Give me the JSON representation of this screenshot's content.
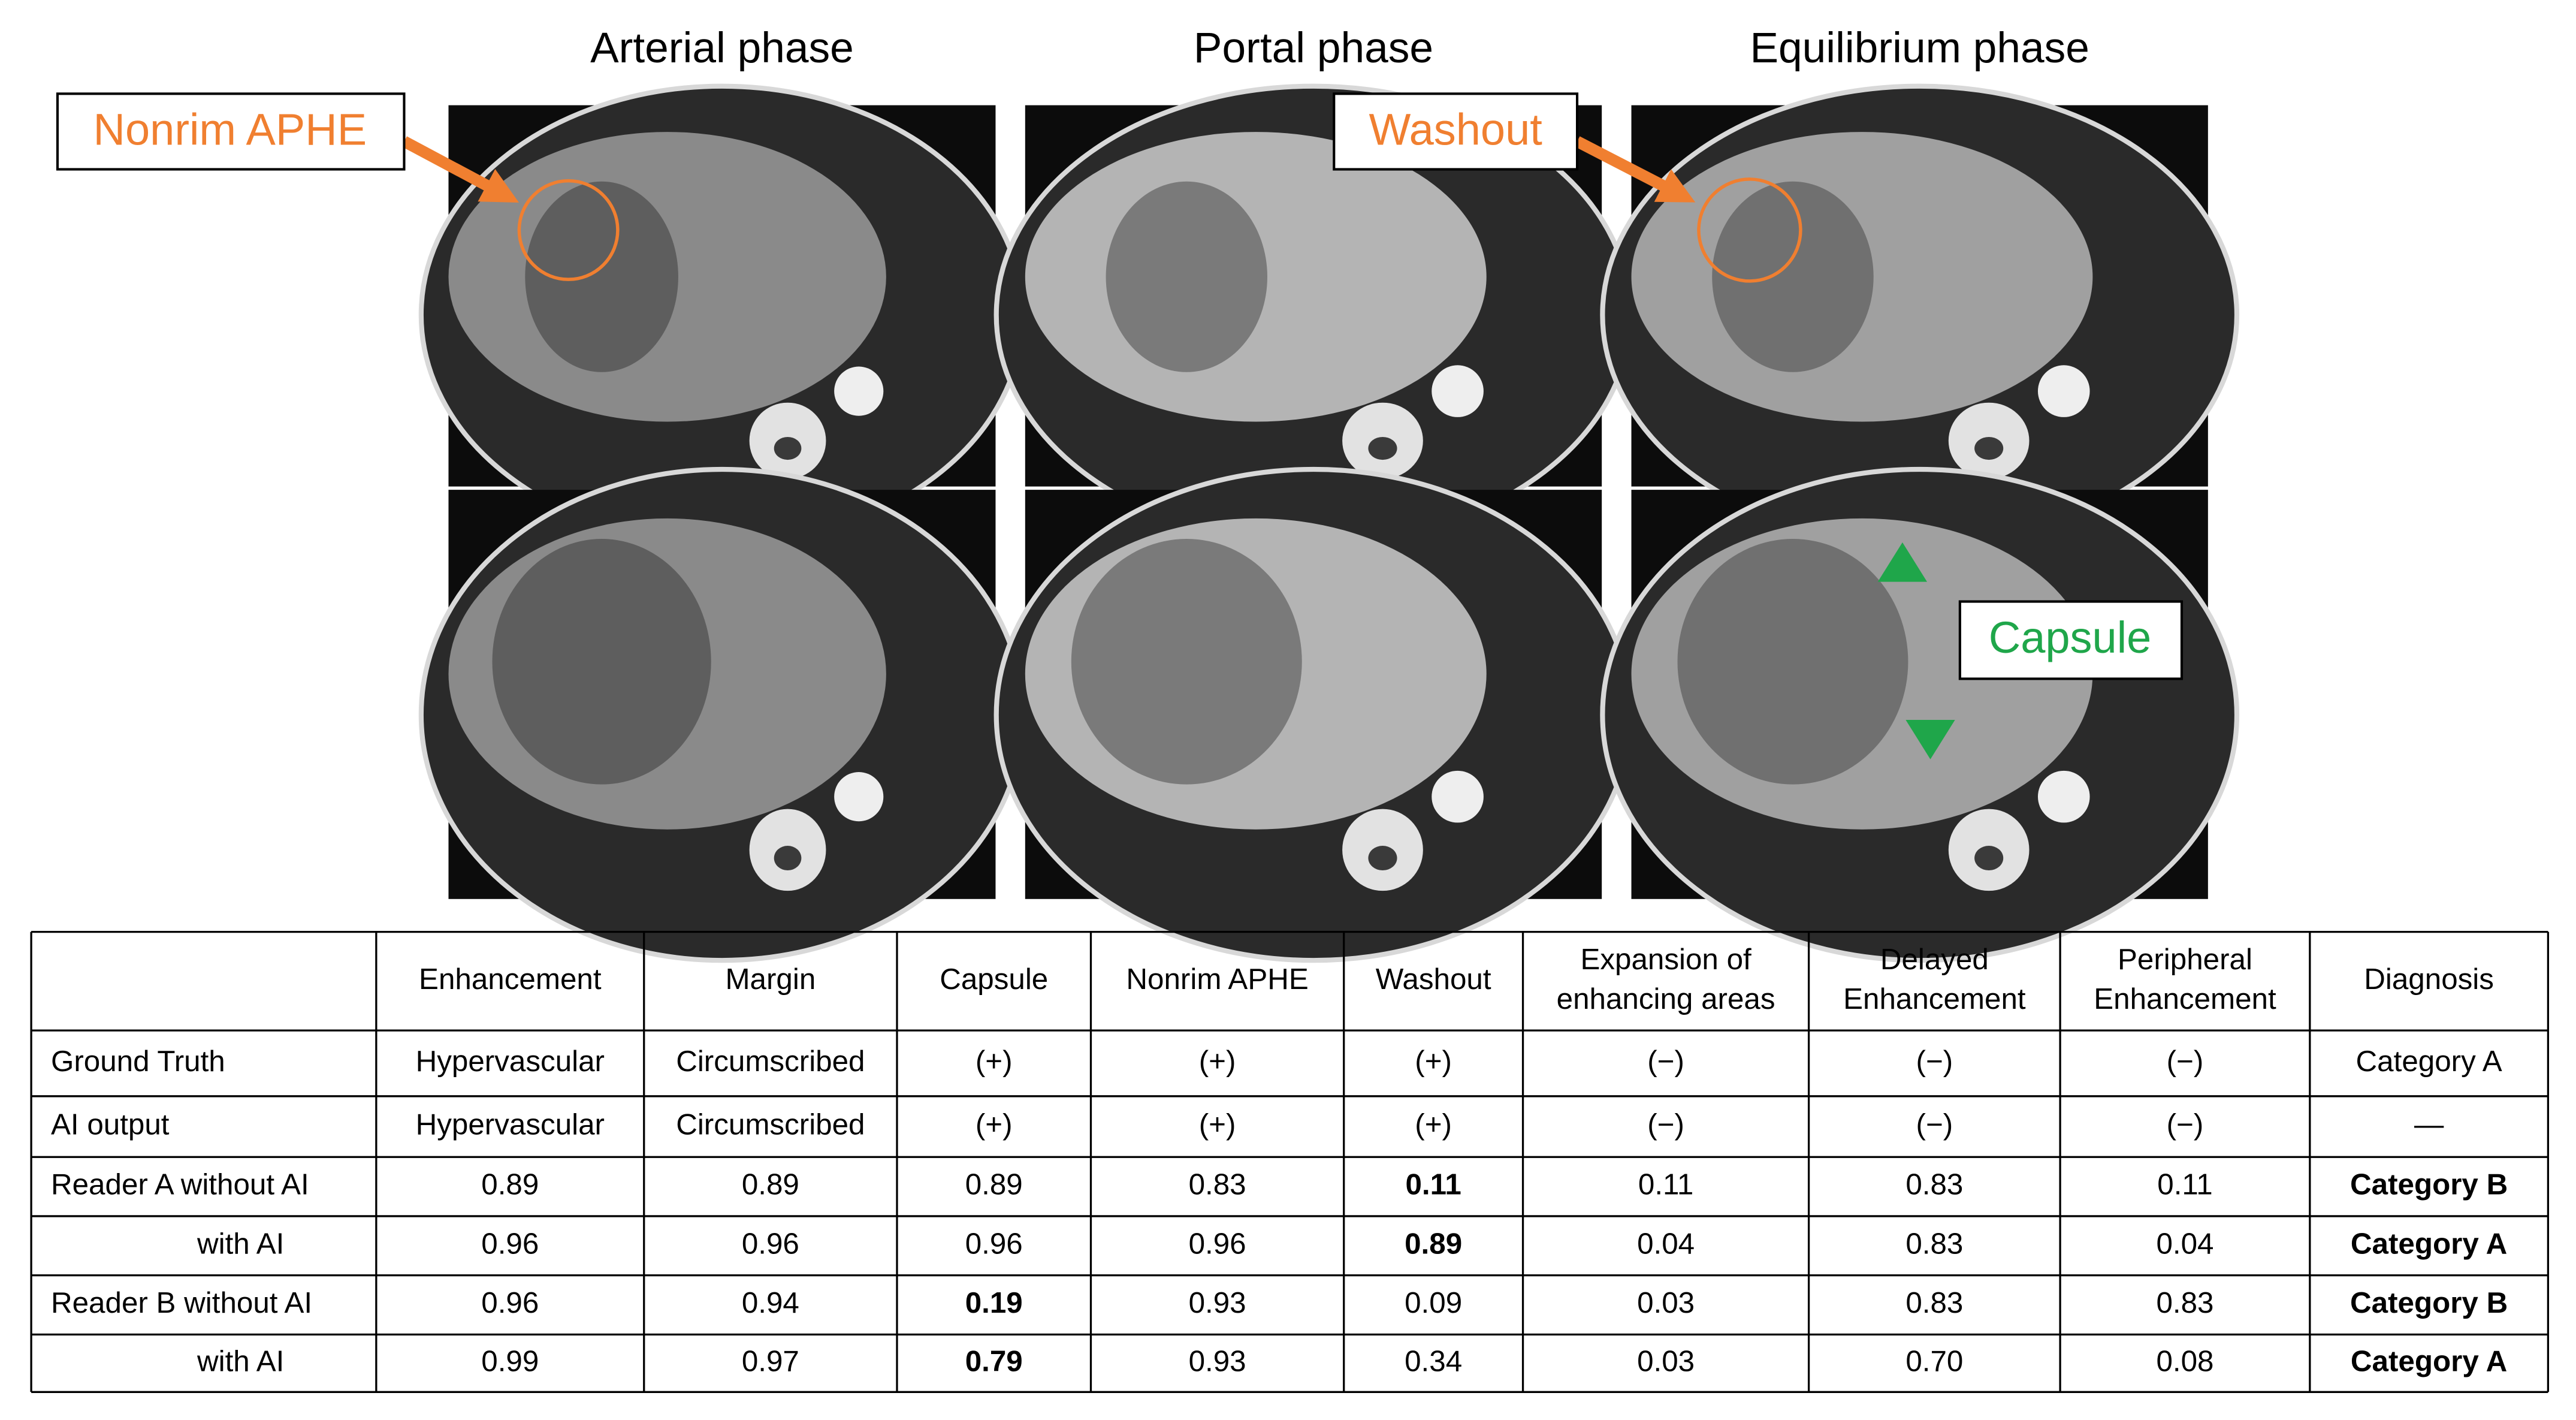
{
  "figure": {
    "phase_titles": [
      "Arterial phase",
      "Portal phase",
      "Equilibrium phase"
    ],
    "annotations": {
      "nonrim_aphe": "Nonrim APHE",
      "washout": "Washout",
      "capsule": "Capsule"
    }
  },
  "table": {
    "header": [
      "Enhancement",
      "Margin",
      "Capsule",
      "Nonrim APHE",
      "Washout",
      [
        "Expansion of",
        "enhancing areas"
      ],
      [
        "Delayed",
        "Enhancement"
      ],
      [
        "Peripheral",
        "Enhancement"
      ],
      "Diagnosis"
    ],
    "rows": [
      {
        "label": "Ground Truth",
        "indent": false,
        "cells": [
          "Hypervascular",
          "Circumscribed",
          "(+)",
          "(+)",
          "(+)",
          "(−)",
          "(−)",
          "(−)",
          "Category A"
        ]
      },
      {
        "label": "AI output",
        "indent": false,
        "cells": [
          "Hypervascular",
          "Circumscribed",
          "(+)",
          "(+)",
          "(+)",
          "(−)",
          "(−)",
          "(−)",
          "—"
        ]
      },
      {
        "label": "Reader A without AI",
        "indent": false,
        "cells": [
          "0.89",
          "0.89",
          "0.89",
          "0.83",
          {
            "text": "0.11",
            "bold": true
          },
          "0.11",
          "0.83",
          "0.11",
          {
            "text": "Category B",
            "bold": true
          }
        ]
      },
      {
        "label": "with AI",
        "indent": true,
        "cells": [
          "0.96",
          "0.96",
          "0.96",
          "0.96",
          {
            "text": "0.89",
            "bold": true
          },
          "0.04",
          "0.83",
          "0.04",
          {
            "text": "Category A",
            "bold": true
          }
        ]
      },
      {
        "label": "Reader B without AI",
        "indent": false,
        "cells": [
          "0.96",
          "0.94",
          {
            "text": "0.19",
            "bold": true
          },
          "0.93",
          "0.09",
          "0.03",
          "0.83",
          "0.83",
          {
            "text": "Category B",
            "bold": true
          }
        ]
      },
      {
        "label": "with AI",
        "indent": true,
        "cells": [
          "0.99",
          "0.97",
          {
            "text": "0.79",
            "bold": true
          },
          "0.93",
          "0.34",
          "0.03",
          "0.70",
          "0.08",
          {
            "text": "Category A",
            "bold": true
          }
        ]
      }
    ]
  }
}
